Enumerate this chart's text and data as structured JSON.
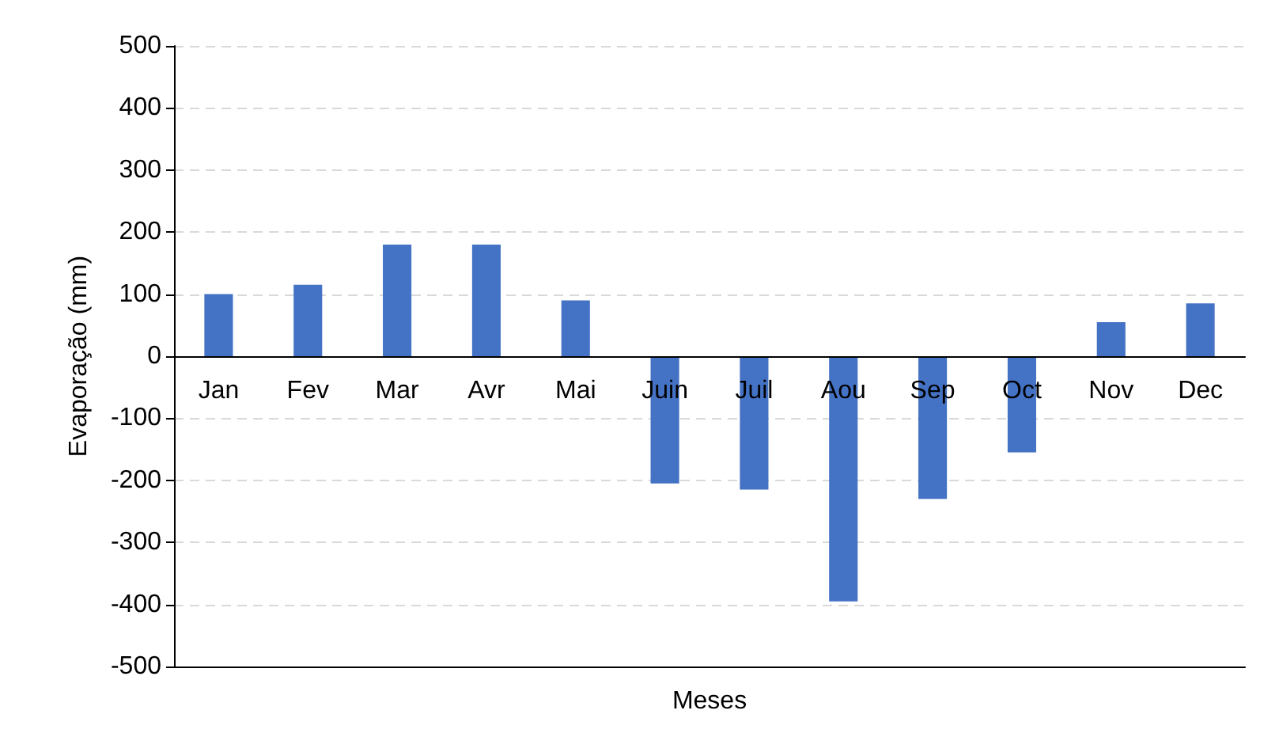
{
  "chart_data": {
    "type": "bar",
    "xlabel": "Meses",
    "ylabel": "Evaporação (mm)",
    "categories": [
      "Jan",
      "Fev",
      "Mar",
      "Avr",
      "Mai",
      "Juin",
      "Juil",
      "Aou",
      "Sep",
      "Oct",
      "Nov",
      "Dec"
    ],
    "values": [
      100,
      115,
      180,
      180,
      90,
      -205,
      -215,
      -395,
      -230,
      -155,
      55,
      85
    ],
    "color": "#4472c4",
    "ylim": [
      -500,
      500
    ],
    "yticks": [
      -500,
      -400,
      -300,
      -200,
      -100,
      0,
      100,
      200,
      300,
      400,
      500
    ],
    "grid": "y"
  }
}
